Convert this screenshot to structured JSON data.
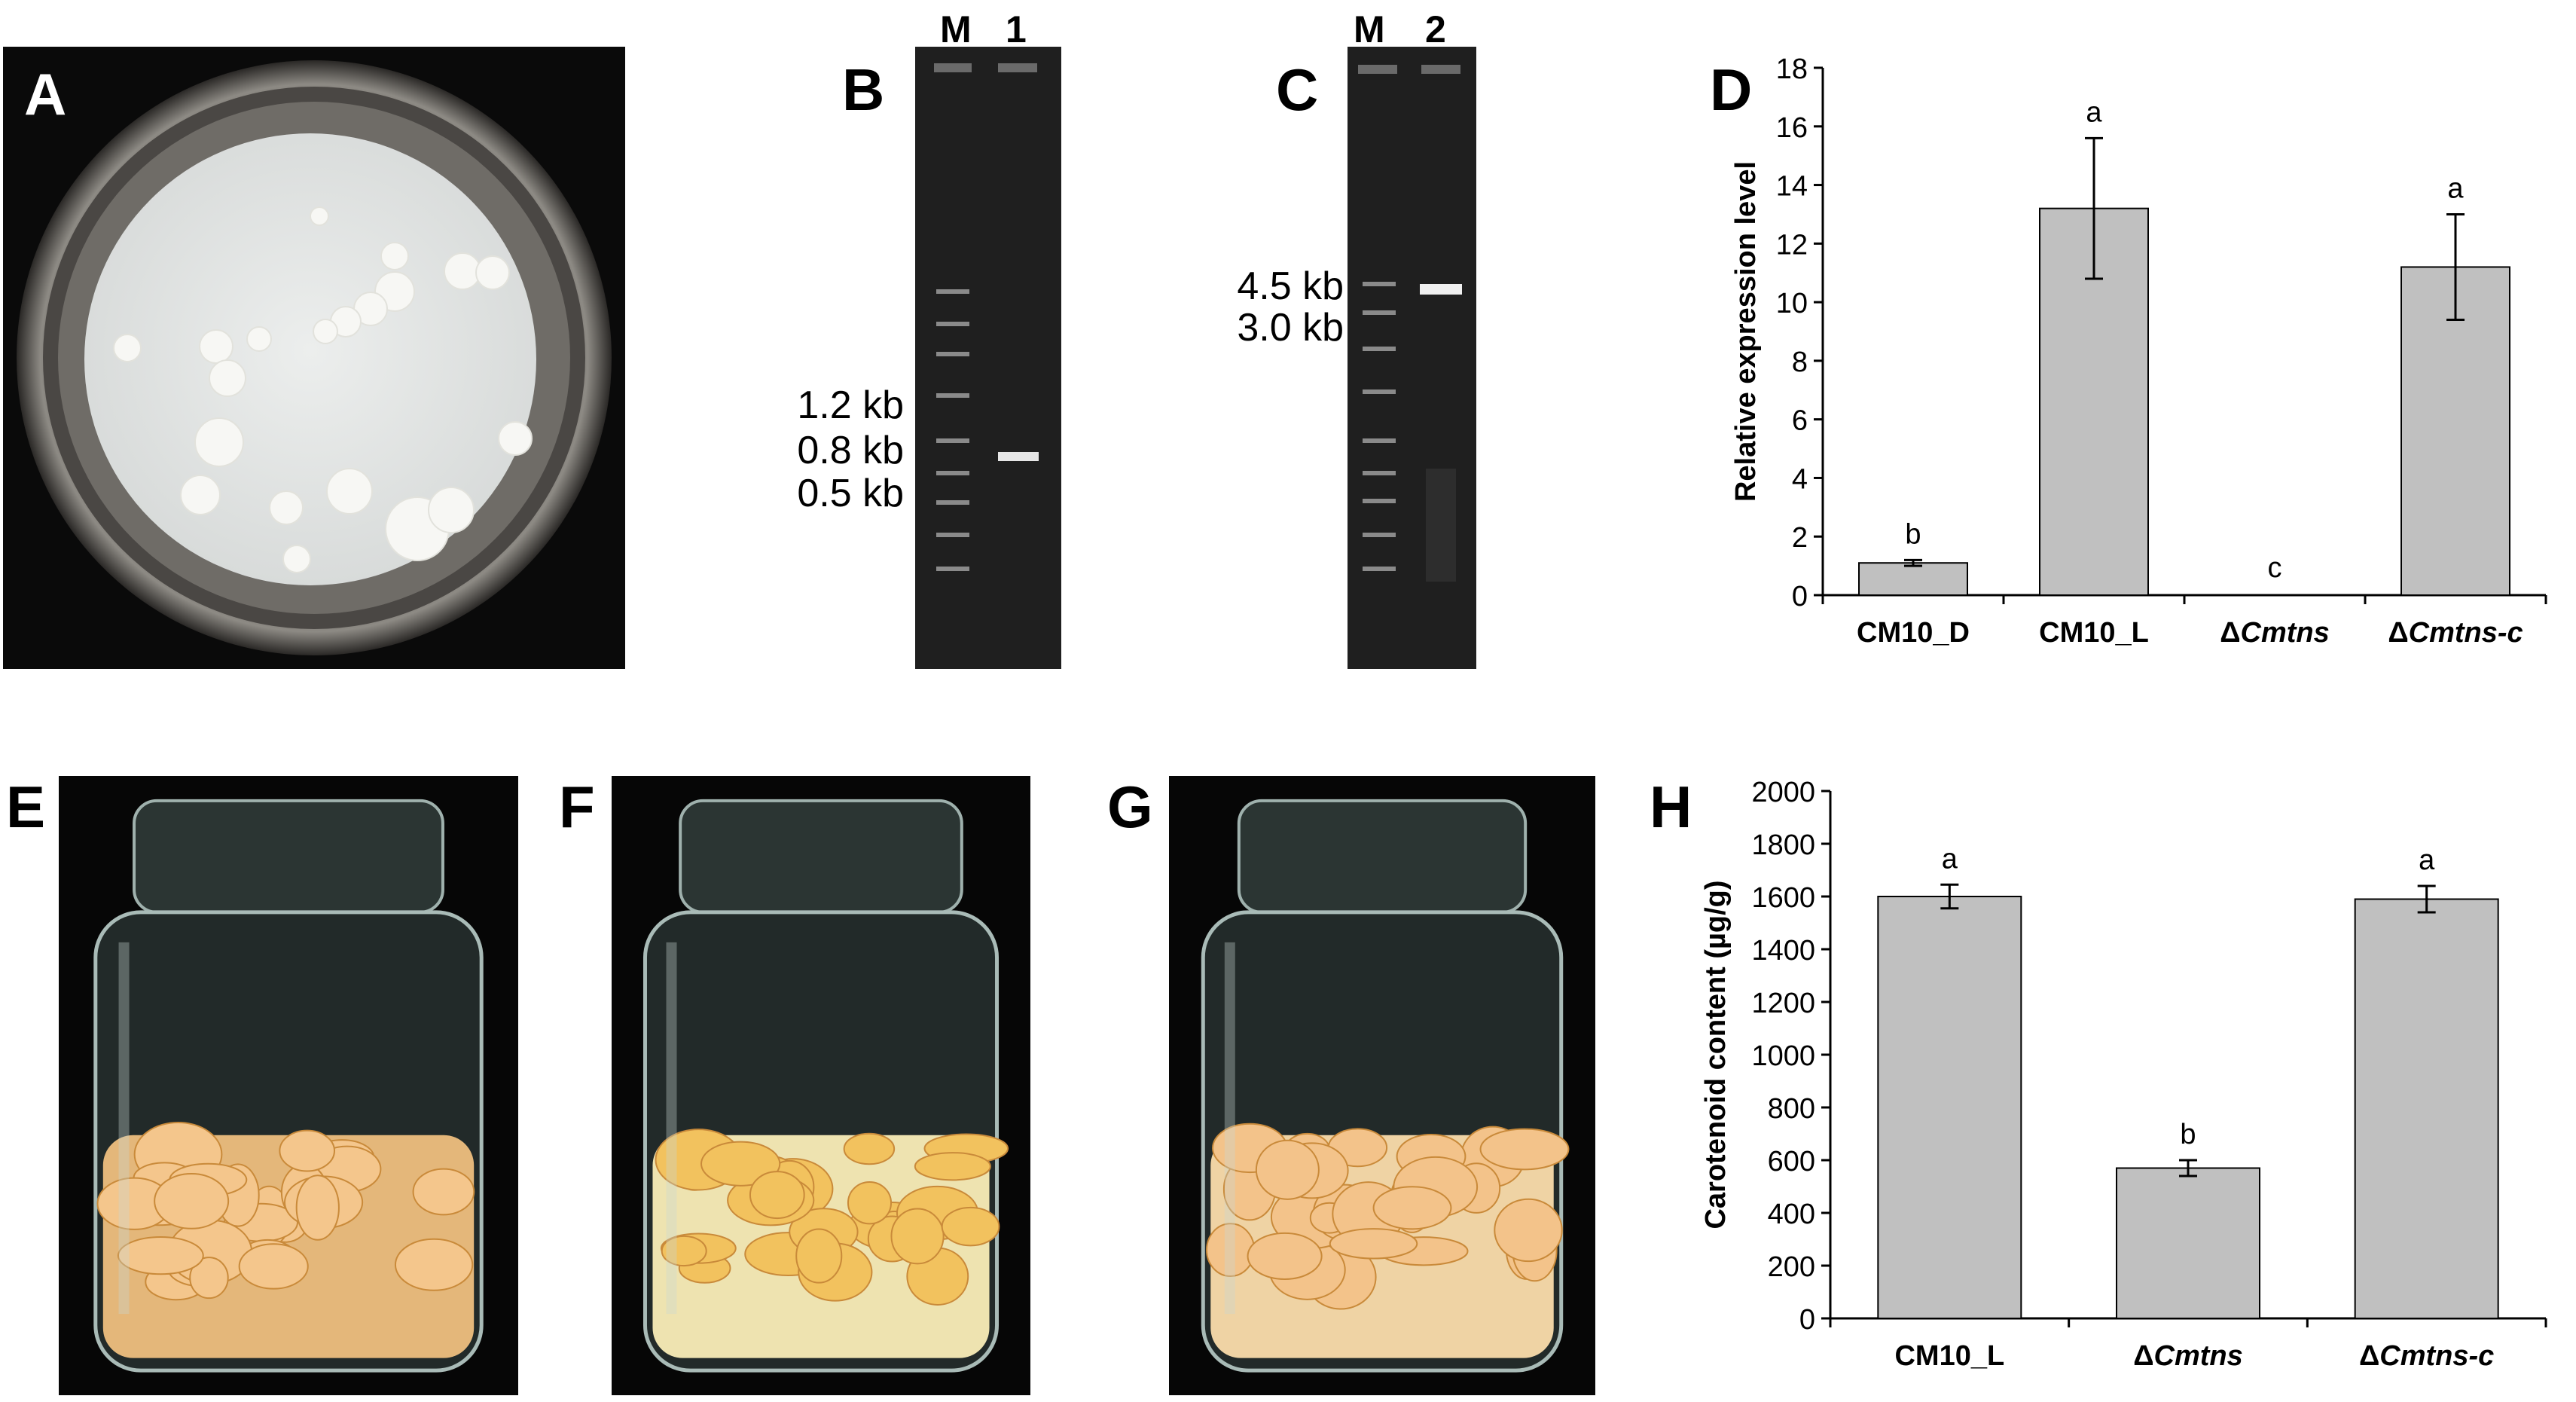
{
  "panels": {
    "A": "A",
    "B": "B",
    "C": "C",
    "D": "D",
    "E": "E",
    "F": "F",
    "G": "G",
    "H": "H"
  },
  "gel_B": {
    "lanes": [
      "M",
      "1"
    ],
    "markers": [
      "1.2 kb",
      "0.8 kb",
      "0.5 kb"
    ]
  },
  "gel_C": {
    "lanes": [
      "M",
      "2"
    ],
    "markers": [
      "4.5 kb",
      "3.0 kb"
    ]
  },
  "chart_data": [
    {
      "id": "D",
      "type": "bar",
      "categories": [
        "CM10_D",
        "CM10_L",
        "ΔCmtns",
        "ΔCmtns-c"
      ],
      "category_parts": [
        {
          "prefix": "CM10_D",
          "italic": ""
        },
        {
          "prefix": "CM10_L",
          "italic": ""
        },
        {
          "prefix": "Δ",
          "italic": "Cmtns"
        },
        {
          "prefix": "Δ",
          "italic": "Cmtns-c"
        }
      ],
      "values": [
        1.1,
        13.2,
        0,
        11.2
      ],
      "errors": [
        0.1,
        2.4,
        0,
        1.8
      ],
      "significance": [
        "b",
        "a",
        "c",
        "a"
      ],
      "ylabel": "Relative expression level",
      "xlabel": "",
      "ylim": [
        0,
        18
      ],
      "yticks": [
        0,
        2,
        4,
        6,
        8,
        10,
        12,
        14,
        16,
        18
      ],
      "bar_color": "#c0c0c0",
      "grid": false
    },
    {
      "id": "H",
      "type": "bar",
      "categories": [
        "CM10_L",
        "ΔCmtns",
        "ΔCmtns-c"
      ],
      "category_parts": [
        {
          "prefix": "CM10_L",
          "italic": ""
        },
        {
          "prefix": "Δ",
          "italic": "Cmtns"
        },
        {
          "prefix": "Δ",
          "italic": "Cmtns-c"
        }
      ],
      "values": [
        1600,
        570,
        1590
      ],
      "errors": [
        45,
        30,
        50
      ],
      "significance": [
        "a",
        "b",
        "a"
      ],
      "ylabel": "Carotenoid content (µg/g)",
      "xlabel": "",
      "ylim": [
        0,
        2000
      ],
      "yticks": [
        0,
        200,
        400,
        600,
        800,
        1000,
        1200,
        1400,
        1600,
        1800,
        2000
      ],
      "bar_color": "#c0c0c0",
      "grid": false
    }
  ]
}
